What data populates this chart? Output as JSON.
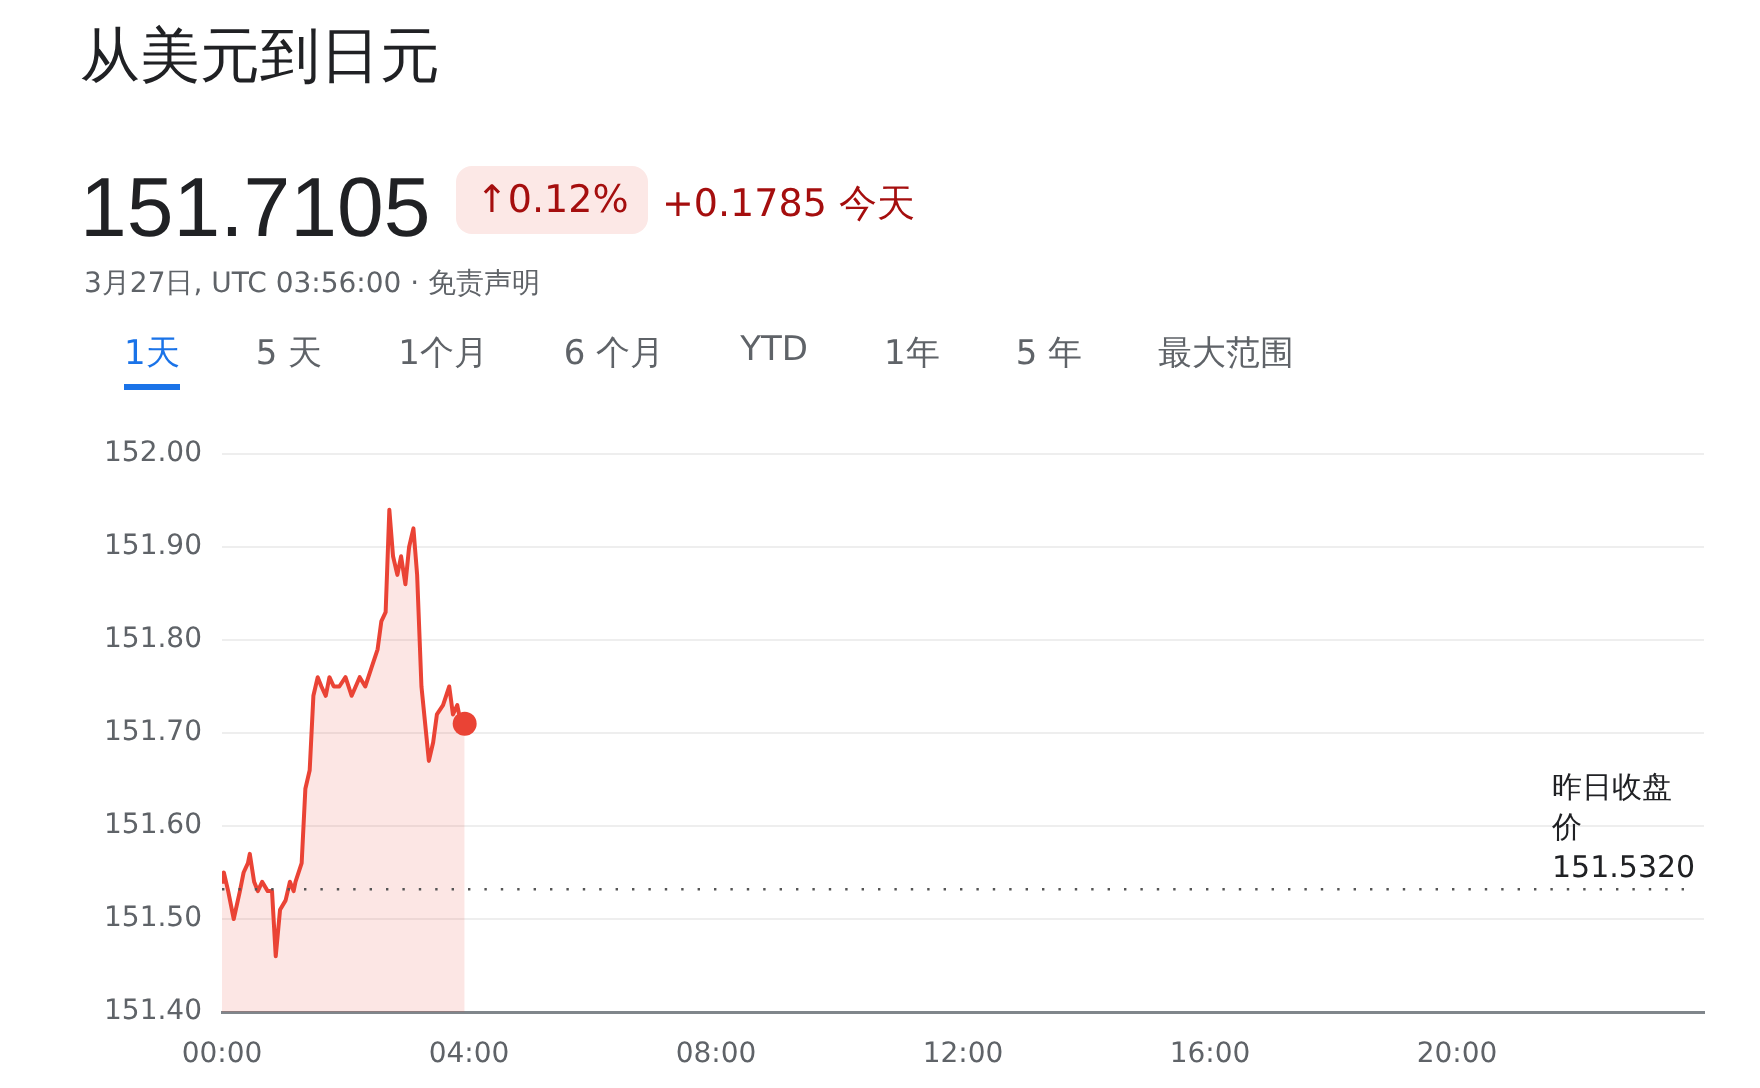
{
  "chart_data": {
    "type": "area",
    "title": "从美元到日元",
    "subtitle": "151.7105",
    "annotations": [
      "↑0.12%",
      "+0.1785 今天",
      "3月27日, UTC 03:56:00 · 免责声明",
      "1天",
      "5 天",
      "1个月",
      "6 个月",
      "YTD",
      "1年",
      "5 年",
      "最大范围"
    ],
    "series": [
      {
        "color": "#ea4335",
        "x": [
          0,
          0.03,
          0.1,
          0.19,
          0.29,
          0.35,
          0.42,
          0.45,
          0.52,
          0.58,
          0.65,
          0.74,
          0.81,
          0.87,
          0.94,
          1.03,
          1.1,
          1.16,
          1.19,
          1.29,
          1.35,
          1.42,
          1.48,
          1.55,
          1.61,
          1.68,
          1.74,
          1.81,
          1.9,
          2.0,
          2.1,
          2.23,
          2.32,
          2.42,
          2.52,
          2.58,
          2.65,
          2.71,
          2.77,
          2.84,
          2.9,
          2.97,
          3.03,
          3.1,
          3.16,
          3.23,
          3.29,
          3.35,
          3.42,
          3.48,
          3.58,
          3.68,
          3.74,
          3.81,
          3.87,
          3.93
        ],
        "values": [
          151.54,
          151.55,
          151.53,
          151.5,
          151.53,
          151.55,
          151.56,
          151.57,
          151.54,
          151.53,
          151.54,
          151.53,
          151.53,
          151.46,
          151.51,
          151.52,
          151.54,
          151.53,
          151.54,
          151.56,
          151.64,
          151.66,
          151.74,
          151.76,
          151.75,
          151.74,
          151.76,
          151.75,
          151.75,
          151.76,
          151.74,
          151.76,
          151.75,
          151.77,
          151.79,
          151.82,
          151.83,
          151.94,
          151.89,
          151.87,
          151.89,
          151.86,
          151.9,
          151.92,
          151.87,
          151.75,
          151.71,
          151.67,
          151.69,
          151.72,
          151.73,
          151.75,
          151.72,
          151.73,
          151.71,
          151.71
        ]
      }
    ],
    "xlim": [
      0,
      24
    ],
    "xticks": [
      {
        "value": 0,
        "label": "00:00"
      },
      {
        "value": 4,
        "label": "04:00"
      },
      {
        "value": 8,
        "label": "08:00"
      },
      {
        "value": 12,
        "label": "12:00"
      },
      {
        "value": 16,
        "label": "16:00"
      },
      {
        "value": 20,
        "label": "20:00"
      }
    ],
    "ylim": [
      151.4,
      152
    ],
    "yticks": [
      {
        "value": 151.4,
        "label": "151.40"
      },
      {
        "value": 151.5,
        "label": "151.50"
      },
      {
        "value": 151.6,
        "label": "151.60"
      },
      {
        "value": 151.7,
        "label": "151.70"
      },
      {
        "value": 151.8,
        "label": "151.80"
      },
      {
        "value": 151.9,
        "label": "151.90"
      },
      {
        "value": 152,
        "label": "152.00"
      }
    ],
    "ref_lines": [
      {
        "axis": "y",
        "value": 151.532,
        "label": "昨日收盘价 151.5320",
        "color": "#555555",
        "line_style": "dotted"
      }
    ],
    "grid": "y",
    "legend": false
  }
}
